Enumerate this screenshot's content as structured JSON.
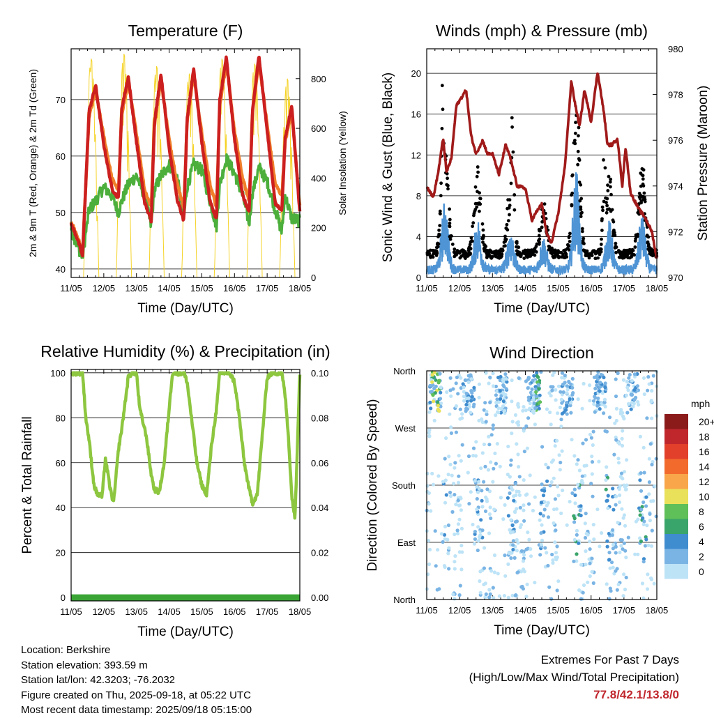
{
  "info": {
    "location": "Location: Berkshire",
    "elevation": "Station elevation: 393.59 m",
    "latlon": "Station lat/lon: 42.3203; -76.2032",
    "created": "Figure created on Thu, 2025-09-18, at 05:22 UTC",
    "recent": "Most recent data timestamp: 2025/09/18 05:15:00"
  },
  "extremes": {
    "title": "Extremes For Past 7 Days",
    "subtitle": "(High/Low/Max Wind/Total Precipitation)",
    "values": "77.8/42.1/13.8/0"
  },
  "chart_data": [
    {
      "type": "line",
      "title": "Temperature (F)",
      "xlabel": "Time (Day/UTC)",
      "ylabel": "2m & 9m T (Red, Orange) & 2m Td (Green)",
      "y2label": "Solar Insolation (Yellow)",
      "x_ticks": [
        "11/05",
        "12/05",
        "13/05",
        "14/05",
        "15/05",
        "16/05",
        "17/05",
        "18/05"
      ],
      "ylim": [
        38.5,
        79
      ],
      "y_ticks": [
        40,
        50,
        60,
        70
      ],
      "y2lim": [
        0,
        920
      ],
      "y2_ticks": [
        0,
        200,
        400,
        600,
        800
      ],
      "x_days": [
        0,
        0.2,
        0.35,
        0.55,
        0.75,
        1.0,
        1.25,
        1.45,
        1.55,
        1.75,
        2.0,
        2.25,
        2.45,
        2.55,
        2.75,
        3.0,
        3.25,
        3.45,
        3.55,
        3.75,
        4.0,
        4.25,
        4.45,
        4.55,
        4.75,
        5.0,
        5.25,
        5.45,
        5.55,
        5.75,
        6.0,
        6.25,
        6.45,
        6.55,
        6.75,
        7.0
      ],
      "series": [
        {
          "name": "2m T",
          "color": "#cc1f1f",
          "values": [
            48.0,
            45.2,
            42.3,
            68.0,
            72.5,
            62.0,
            54.2,
            52.5,
            68.5,
            74.0,
            62.5,
            51.8,
            48.5,
            66.0,
            74.5,
            61.5,
            52.2,
            48.5,
            66.5,
            75.5,
            62.5,
            52.0,
            48.8,
            70.0,
            77.5,
            63.0,
            53.0,
            50.0,
            68.0,
            77.8,
            64.5,
            51.5,
            50.5,
            63.0,
            69.0,
            50.0
          ]
        },
        {
          "name": "9m T",
          "color": "#f07f2a",
          "values": [
            48.5,
            45.6,
            42.9,
            67.0,
            71.5,
            63.5,
            56.0,
            54.0,
            67.5,
            73.0,
            64.0,
            54.0,
            51.0,
            65.5,
            73.5,
            63.0,
            55.0,
            51.0,
            66.0,
            74.5,
            64.0,
            55.0,
            51.0,
            69.0,
            76.5,
            64.5,
            56.0,
            52.0,
            67.5,
            76.8,
            65.5,
            55.0,
            53.0,
            62.5,
            68.0,
            51.0
          ]
        },
        {
          "name": "2m Td",
          "color": "#4caf3c",
          "values": [
            47.0,
            44.0,
            42.1,
            50.5,
            52.0,
            54.5,
            53.0,
            50.0,
            52.0,
            55.0,
            56.5,
            53.0,
            47.5,
            54.0,
            56.5,
            58.5,
            56.0,
            49.0,
            54.5,
            58.5,
            57.5,
            52.0,
            47.5,
            55.0,
            59.5,
            57.0,
            53.0,
            48.0,
            53.5,
            58.0,
            55.5,
            50.5,
            46.5,
            53.0,
            49.0,
            48.5
          ]
        }
      ],
      "solar": {
        "name": "Solar Insolation",
        "color": "#f5d327",
        "peaks": [
          880,
          900,
          850,
          820,
          880,
          860,
          800
        ]
      }
    },
    {
      "type": "line",
      "title": "Winds (mph) & Pressure (mb)",
      "xlabel": "Time (Day/UTC)",
      "ylabel": "Sonic Wind & Gust (Blue, Black)",
      "y2label": "Station Pressure (Maroon)",
      "x_ticks": [
        "11/05",
        "12/05",
        "13/05",
        "14/05",
        "15/05",
        "16/05",
        "17/05",
        "18/05"
      ],
      "ylim": [
        0,
        22.4
      ],
      "y_ticks": [
        0,
        4,
        8,
        12,
        16,
        20
      ],
      "y2lim": [
        970,
        980
      ],
      "y2_ticks": [
        970,
        972,
        974,
        976,
        978,
        980
      ],
      "pressure": {
        "name": "Station Pressure",
        "color": "#a01a1a",
        "x_days": [
          0,
          0.2,
          0.35,
          0.5,
          0.6,
          0.75,
          0.9,
          1.2,
          1.35,
          1.5,
          1.7,
          1.85,
          2.0,
          2.2,
          2.4,
          2.55,
          2.75,
          3.0,
          3.2,
          3.35,
          3.5,
          3.65,
          3.8,
          4.0,
          4.2,
          4.4,
          4.5,
          4.65,
          4.8,
          5.0,
          5.2,
          5.4,
          5.5,
          5.65,
          5.8,
          5.95,
          6.05,
          6.2,
          6.45,
          6.65,
          6.85,
          7.0
        ],
        "values": [
          974.0,
          973.5,
          974.6,
          976.1,
          974.6,
          975.2,
          977.5,
          978.2,
          976.2,
          975.4,
          976.0,
          975.4,
          975.4,
          974.5,
          975.8,
          975.2,
          974.0,
          973.9,
          972.5,
          972.9,
          973.2,
          971.9,
          971.5,
          972.8,
          974.8,
          978.6,
          977.7,
          976.6,
          978.2,
          976.8,
          979.0,
          977.1,
          975.8,
          975.8,
          976.1,
          974.0,
          975.7,
          973.7,
          973.0,
          972.6,
          972.0,
          970.8
        ]
      },
      "wind_max_days": [
        0.5,
        2.6,
        5.4
      ],
      "wind_max_values": [
        20.5,
        16.8,
        12.5
      ]
    },
    {
      "type": "line",
      "title": "Relative Humidity (%) & Precipitation (in)",
      "xlabel": "Time (Day/UTC)",
      "ylabel": "Percent & Total Rainfall",
      "x_ticks": [
        "11/05",
        "12/05",
        "13/05",
        "14/05",
        "15/05",
        "16/05",
        "17/05",
        "18/05"
      ],
      "ylim": [
        -1.5,
        101.5
      ],
      "y_ticks": [
        0,
        20,
        40,
        60,
        80,
        100
      ],
      "y2lim": [
        0,
        0.1
      ],
      "y2_ticks": [
        "0.00",
        "0.02",
        "0.04",
        "0.06",
        "0.08",
        "0.10"
      ],
      "series": [
        {
          "name": "Relative Humidity",
          "color": "#8dc63f",
          "x_days": [
            0,
            0.15,
            0.35,
            0.45,
            0.55,
            0.7,
            0.8,
            0.95,
            1.05,
            1.2,
            1.3,
            1.45,
            1.55,
            1.75,
            1.85,
            2.0,
            2.1,
            2.3,
            2.45,
            2.55,
            2.7,
            2.85,
            3.0,
            3.1,
            3.3,
            3.45,
            3.55,
            3.7,
            3.85,
            4.0,
            4.15,
            4.3,
            4.45,
            4.55,
            4.7,
            4.85,
            5.0,
            5.15,
            5.3,
            5.45,
            5.55,
            5.7,
            5.85,
            6.0,
            6.15,
            6.3,
            6.45,
            6.55,
            6.65,
            6.75,
            6.85,
            7.0
          ],
          "values": [
            100,
            100,
            100,
            80,
            70,
            50,
            46,
            45,
            62,
            48,
            42,
            66,
            75,
            98,
            100,
            100,
            84,
            72,
            55,
            48,
            47,
            60,
            84,
            100,
            100,
            100,
            96,
            78,
            60,
            50,
            46,
            68,
            84,
            100,
            100,
            100,
            96,
            80,
            60,
            48,
            42,
            46,
            72,
            98,
            100,
            100,
            100,
            90,
            72,
            46,
            35,
            100
          ]
        },
        {
          "name": "Total Precipitation",
          "color": "#3aa535",
          "values": [
            0,
            0
          ]
        }
      ]
    },
    {
      "type": "scatter",
      "title": "Wind Direction",
      "xlabel": "Time (Day/UTC)",
      "ylabel": "Direction (Colored By Speed)",
      "x_ticks": [
        "11/05",
        "12/05",
        "13/05",
        "14/05",
        "15/05",
        "16/05",
        "17/05",
        "18/05"
      ],
      "y_ticks": [
        "North",
        "East",
        "South",
        "West",
        "North"
      ],
      "legend": {
        "title": "mph",
        "labels": [
          "20+",
          "18",
          "16",
          "14",
          "12",
          "10",
          "8",
          "6",
          "4",
          "2",
          "0"
        ],
        "colors": [
          "#8b1a1a",
          "#c0272d",
          "#e2402a",
          "#f26b2c",
          "#f9a64a",
          "#e9e15a",
          "#5fbf58",
          "#3aa56a",
          "#3f8ccf",
          "#7ab4e4",
          "#bde3f7"
        ]
      }
    }
  ]
}
